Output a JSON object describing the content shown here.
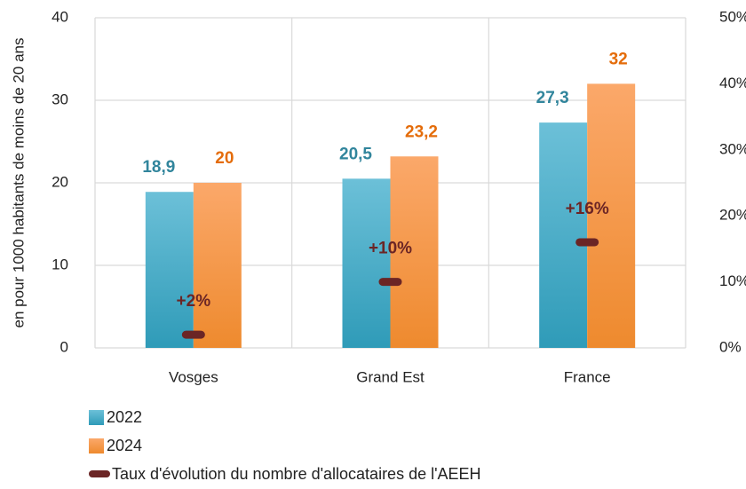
{
  "chart_data": {
    "type": "bar",
    "y_axis_label": "en pour 1000 habitants de moins de 20 ans",
    "categories": [
      "Vosges",
      "Grand Est",
      "France"
    ],
    "series": [
      {
        "name": "2022",
        "color": "#4bacc6",
        "values": [
          18.9,
          20.5,
          27.3
        ],
        "value_labels": [
          "18,9",
          "20,5",
          "27,3"
        ],
        "label_color": "#31859c"
      },
      {
        "name": "2024",
        "color": "#f79646",
        "values": [
          20,
          23.2,
          32
        ],
        "value_labels": [
          "20",
          "23,2",
          "32"
        ],
        "label_color": "#e46c0a"
      },
      {
        "name": "Taux d'évolution du nombre d'allocataires de l'AEEH",
        "color": "#6b2525",
        "axis": "y2",
        "marker": "dash",
        "values": [
          2,
          10,
          16
        ],
        "value_labels": [
          "+2%",
          "+10%",
          "+16%"
        ]
      }
    ],
    "ylim": [
      0,
      40
    ],
    "yticks": [
      0,
      10,
      20,
      30,
      40
    ],
    "y2lim": [
      0,
      50
    ],
    "y2ticks": [
      {
        "value": 0,
        "label": "0%"
      },
      {
        "value": 10,
        "label": "10%"
      },
      {
        "value": 20,
        "label": "20%"
      },
      {
        "value": 30,
        "label": "30%"
      },
      {
        "value": 40,
        "label": "40%"
      },
      {
        "value": 50,
        "label": "50%"
      }
    ],
    "grid": true,
    "legend": "bottom-left"
  }
}
